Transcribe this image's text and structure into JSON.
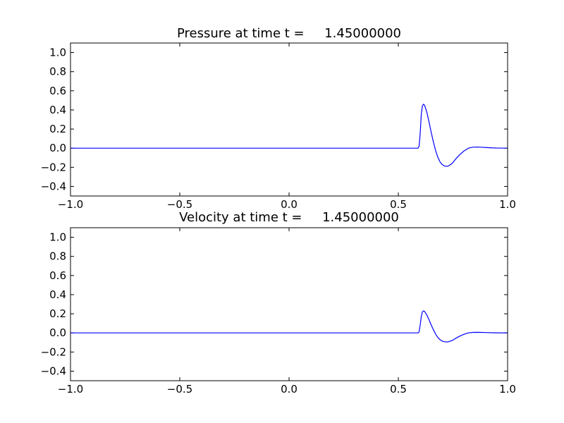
{
  "chart_data": [
    {
      "type": "line",
      "title": "Pressure at time t =     1.45000000",
      "xlabel": "",
      "ylabel": "",
      "xlim": [
        -1.0,
        1.0
      ],
      "ylim": [
        -0.5,
        1.1
      ],
      "grid": false,
      "xticks": [
        -1.0,
        -0.5,
        0.0,
        0.5,
        1.0
      ],
      "xtick_labels": [
        "−1.0",
        "−0.5",
        "0.0",
        "0.5",
        "1.0"
      ],
      "yticks": [
        -0.4,
        -0.2,
        0.0,
        0.2,
        0.4,
        0.6,
        0.8,
        1.0
      ],
      "ytick_labels": [
        "−0.4",
        "−0.2",
        "0.0",
        "0.2",
        "0.4",
        "0.6",
        "0.8",
        "1.0"
      ],
      "series": [
        {
          "color": "#0000ff",
          "x": [
            -1.0,
            0.59,
            0.595,
            0.6,
            0.605,
            0.61,
            0.615,
            0.62,
            0.63,
            0.64,
            0.65,
            0.66,
            0.67,
            0.68,
            0.69,
            0.7,
            0.71,
            0.72,
            0.73,
            0.74,
            0.75,
            0.76,
            0.78,
            0.8,
            0.82,
            0.84,
            0.86,
            0.88,
            0.9,
            0.93,
            0.96,
            1.0
          ],
          "y": [
            0.0,
            0.0,
            0.02,
            0.15,
            0.35,
            0.44,
            0.46,
            0.45,
            0.38,
            0.28,
            0.17,
            0.07,
            -0.02,
            -0.09,
            -0.14,
            -0.17,
            -0.185,
            -0.19,
            -0.185,
            -0.17,
            -0.15,
            -0.12,
            -0.07,
            -0.03,
            0.0,
            0.01,
            0.012,
            0.01,
            0.007,
            0.003,
            0.001,
            0.0
          ]
        }
      ]
    },
    {
      "type": "line",
      "title": "Velocity at time t =     1.45000000",
      "xlabel": "",
      "ylabel": "",
      "xlim": [
        -1.0,
        1.0
      ],
      "ylim": [
        -0.5,
        1.1
      ],
      "grid": false,
      "xticks": [
        -1.0,
        -0.5,
        0.0,
        0.5,
        1.0
      ],
      "xtick_labels": [
        "−1.0",
        "−0.5",
        "0.0",
        "0.5",
        "1.0"
      ],
      "yticks": [
        -0.4,
        -0.2,
        0.0,
        0.2,
        0.4,
        0.6,
        0.8,
        1.0
      ],
      "ytick_labels": [
        "−0.4",
        "−0.2",
        "0.0",
        "0.2",
        "0.4",
        "0.6",
        "0.8",
        "1.0"
      ],
      "series": [
        {
          "color": "#0000ff",
          "x": [
            -1.0,
            0.59,
            0.595,
            0.6,
            0.605,
            0.61,
            0.615,
            0.62,
            0.63,
            0.64,
            0.65,
            0.66,
            0.67,
            0.68,
            0.69,
            0.7,
            0.71,
            0.72,
            0.73,
            0.74,
            0.75,
            0.76,
            0.78,
            0.8,
            0.82,
            0.84,
            0.86,
            0.88,
            0.9,
            0.93,
            0.96,
            1.0
          ],
          "y": [
            0.0,
            0.0,
            0.01,
            0.08,
            0.17,
            0.22,
            0.23,
            0.225,
            0.19,
            0.14,
            0.085,
            0.035,
            -0.01,
            -0.045,
            -0.07,
            -0.085,
            -0.092,
            -0.095,
            -0.092,
            -0.085,
            -0.075,
            -0.06,
            -0.035,
            -0.015,
            0.0,
            0.005,
            0.006,
            0.005,
            0.0035,
            0.0015,
            0.0005,
            0.0
          ]
        }
      ]
    }
  ]
}
